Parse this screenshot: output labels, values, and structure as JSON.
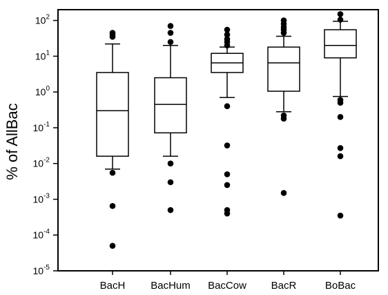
{
  "chart_data": {
    "type": "box",
    "ylabel": "% of AllBac",
    "y_scale": "log10",
    "ylim": [
      1e-05,
      200
    ],
    "y_ticks": [
      {
        "value": 1e-05,
        "base": "10",
        "exp": "-5"
      },
      {
        "value": 0.0001,
        "base": "10",
        "exp": "-4"
      },
      {
        "value": 0.001,
        "base": "10",
        "exp": "-3"
      },
      {
        "value": 0.01,
        "base": "10",
        "exp": "-2"
      },
      {
        "value": 0.1,
        "base": "10",
        "exp": "-1"
      },
      {
        "value": 1,
        "base": "10",
        "exp": "0"
      },
      {
        "value": 10,
        "base": "10",
        "exp": "1"
      },
      {
        "value": 100,
        "base": "10",
        "exp": "2"
      }
    ],
    "categories": [
      "BacH",
      "BacHum",
      "BacCow",
      "BacR",
      "BoBac"
    ],
    "boxes": [
      {
        "category": "BacH",
        "whisker_low": 0.007,
        "q1": 0.016,
        "median": 0.3,
        "q3": 3.5,
        "whisker_high": 22,
        "outliers": [
          0.0055,
          0.00065,
          5e-05,
          35,
          40,
          45
        ]
      },
      {
        "category": "BacHum",
        "whisker_low": 0.016,
        "q1": 0.072,
        "median": 0.45,
        "q3": 2.5,
        "whisker_high": 20,
        "outliers": [
          0.01,
          0.003,
          0.0005,
          25,
          45,
          70
        ]
      },
      {
        "category": "BacCow",
        "whisker_low": 0.7,
        "q1": 3.5,
        "median": 6.5,
        "q3": 12,
        "whisker_high": 18,
        "outliers": [
          0.4,
          0.032,
          0.005,
          0.0025,
          0.0005,
          0.0004,
          20,
          25,
          30,
          40,
          55
        ]
      },
      {
        "category": "BacR",
        "whisker_low": 0.28,
        "q1": 1.05,
        "median": 6.5,
        "q3": 18,
        "whisker_high": 36,
        "outliers": [
          0.22,
          0.18,
          0.0015,
          45,
          55,
          65,
          80,
          100
        ]
      },
      {
        "category": "BoBac",
        "whisker_low": 0.75,
        "q1": 9,
        "median": 20,
        "q3": 55,
        "whisker_high": 95,
        "outliers": [
          0.6,
          0.5,
          0.2,
          0.027,
          0.016,
          0.00035,
          105,
          150
        ]
      }
    ],
    "grid": false,
    "legend": "none"
  }
}
